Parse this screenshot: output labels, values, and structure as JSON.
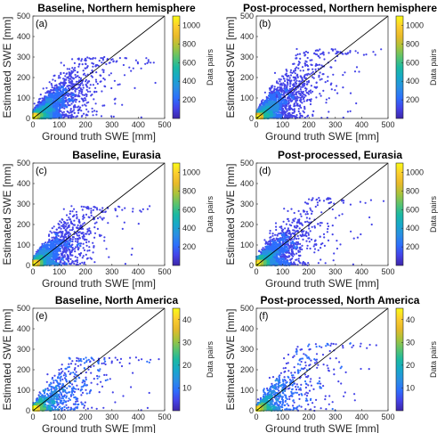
{
  "chart_data": [
    {
      "type": "scatter",
      "panel_label": "(a)",
      "title": "Baseline, Northern hemisphere",
      "xlabel": "Ground truth SWE [mm]",
      "ylabel": "Estimated SWE [mm]",
      "xlim": [
        0,
        500
      ],
      "ylim": [
        0,
        500
      ],
      "xticks": [
        0,
        100,
        200,
        300,
        400,
        500
      ],
      "yticks": [
        0,
        100,
        200,
        300,
        400,
        500
      ],
      "colorbar": {
        "label": "Data pairs",
        "range": [
          0,
          1100
        ],
        "ticks": [
          200,
          400,
          600,
          800,
          1000
        ]
      },
      "one_to_one_line": true,
      "density": {
        "count": 2400,
        "xmean": 70,
        "yspread_ratio": 0.38,
        "ycap": 300
      }
    },
    {
      "type": "scatter",
      "panel_label": "(b)",
      "title": "Post-processed, Northern hemisphere",
      "xlabel": "Ground truth SWE [mm]",
      "ylabel": "Estimated SWE [mm]",
      "xlim": [
        0,
        500
      ],
      "ylim": [
        0,
        500
      ],
      "xticks": [
        0,
        100,
        200,
        300,
        400,
        500
      ],
      "yticks": [
        0,
        100,
        200,
        300,
        400,
        500
      ],
      "colorbar": {
        "label": "Data pairs",
        "range": [
          0,
          1100
        ],
        "ticks": [
          200,
          400,
          600,
          800,
          1000
        ]
      },
      "one_to_one_line": true,
      "density": {
        "count": 2400,
        "xmean": 70,
        "yspread_ratio": 0.42,
        "ycap": 340
      }
    },
    {
      "type": "scatter",
      "panel_label": "(c)",
      "title": "Baseline, Eurasia",
      "xlabel": "Ground truth SWE [mm]",
      "ylabel": "Estimated SWE [mm]",
      "xlim": [
        0,
        500
      ],
      "ylim": [
        0,
        500
      ],
      "xticks": [
        0,
        100,
        200,
        300,
        400,
        500
      ],
      "yticks": [
        0,
        100,
        200,
        300,
        400,
        500
      ],
      "colorbar": {
        "label": "Data pairs",
        "range": [
          0,
          1100
        ],
        "ticks": [
          200,
          400,
          600,
          800,
          1000
        ]
      },
      "one_to_one_line": true,
      "density": {
        "count": 2200,
        "xmean": 65,
        "yspread_ratio": 0.38,
        "ycap": 290
      }
    },
    {
      "type": "scatter",
      "panel_label": "(d)",
      "title": "Post-processed, Eurasia",
      "xlabel": "Ground truth SWE [mm]",
      "ylabel": "Estimated SWE [mm]",
      "xlim": [
        0,
        500
      ],
      "ylim": [
        0,
        500
      ],
      "xticks": [
        0,
        100,
        200,
        300,
        400,
        500
      ],
      "yticks": [
        0,
        100,
        200,
        300,
        400,
        500
      ],
      "colorbar": {
        "label": "Data pairs",
        "range": [
          0,
          1100
        ],
        "ticks": [
          200,
          400,
          600,
          800,
          1000
        ]
      },
      "one_to_one_line": true,
      "density": {
        "count": 2200,
        "xmean": 65,
        "yspread_ratio": 0.42,
        "ycap": 330
      }
    },
    {
      "type": "scatter",
      "panel_label": "(e)",
      "title": "Baseline, North America",
      "xlabel": "Ground truth SWE [mm]",
      "ylabel": "Estimated SWE [mm]",
      "xlim": [
        0,
        500
      ],
      "ylim": [
        0,
        500
      ],
      "xticks": [
        0,
        100,
        200,
        300,
        400,
        500
      ],
      "yticks": [
        0,
        100,
        200,
        300,
        400,
        500
      ],
      "colorbar": {
        "label": "Data pairs",
        "range": [
          0,
          45
        ],
        "ticks": [
          10,
          20,
          30,
          40
        ]
      },
      "one_to_one_line": true,
      "density": {
        "count": 900,
        "xmean": 85,
        "yspread_ratio": 0.45,
        "ycap": 260
      }
    },
    {
      "type": "scatter",
      "panel_label": "(f)",
      "title": "Post-processed, North America",
      "xlabel": "Ground truth SWE [mm]",
      "ylabel": "Estimated SWE [mm]",
      "xlim": [
        0,
        500
      ],
      "ylim": [
        0,
        500
      ],
      "xticks": [
        0,
        100,
        200,
        300,
        400,
        500
      ],
      "yticks": [
        0,
        100,
        200,
        300,
        400,
        500
      ],
      "colorbar": {
        "label": "Data pairs",
        "range": [
          0,
          45
        ],
        "ticks": [
          10,
          20,
          30,
          40
        ]
      },
      "one_to_one_line": true,
      "density": {
        "count": 900,
        "xmean": 85,
        "yspread_ratio": 0.5,
        "ycap": 330
      }
    }
  ],
  "colors": {
    "parula": [
      "#3e26a8",
      "#4443e8",
      "#2d6ffc",
      "#2a8fe3",
      "#17a8c9",
      "#1cb9a1",
      "#5cc36d",
      "#a9c33b",
      "#e8b92a",
      "#fcce2e",
      "#f9fb15"
    ],
    "line": "#000000",
    "axis": "#262626"
  }
}
